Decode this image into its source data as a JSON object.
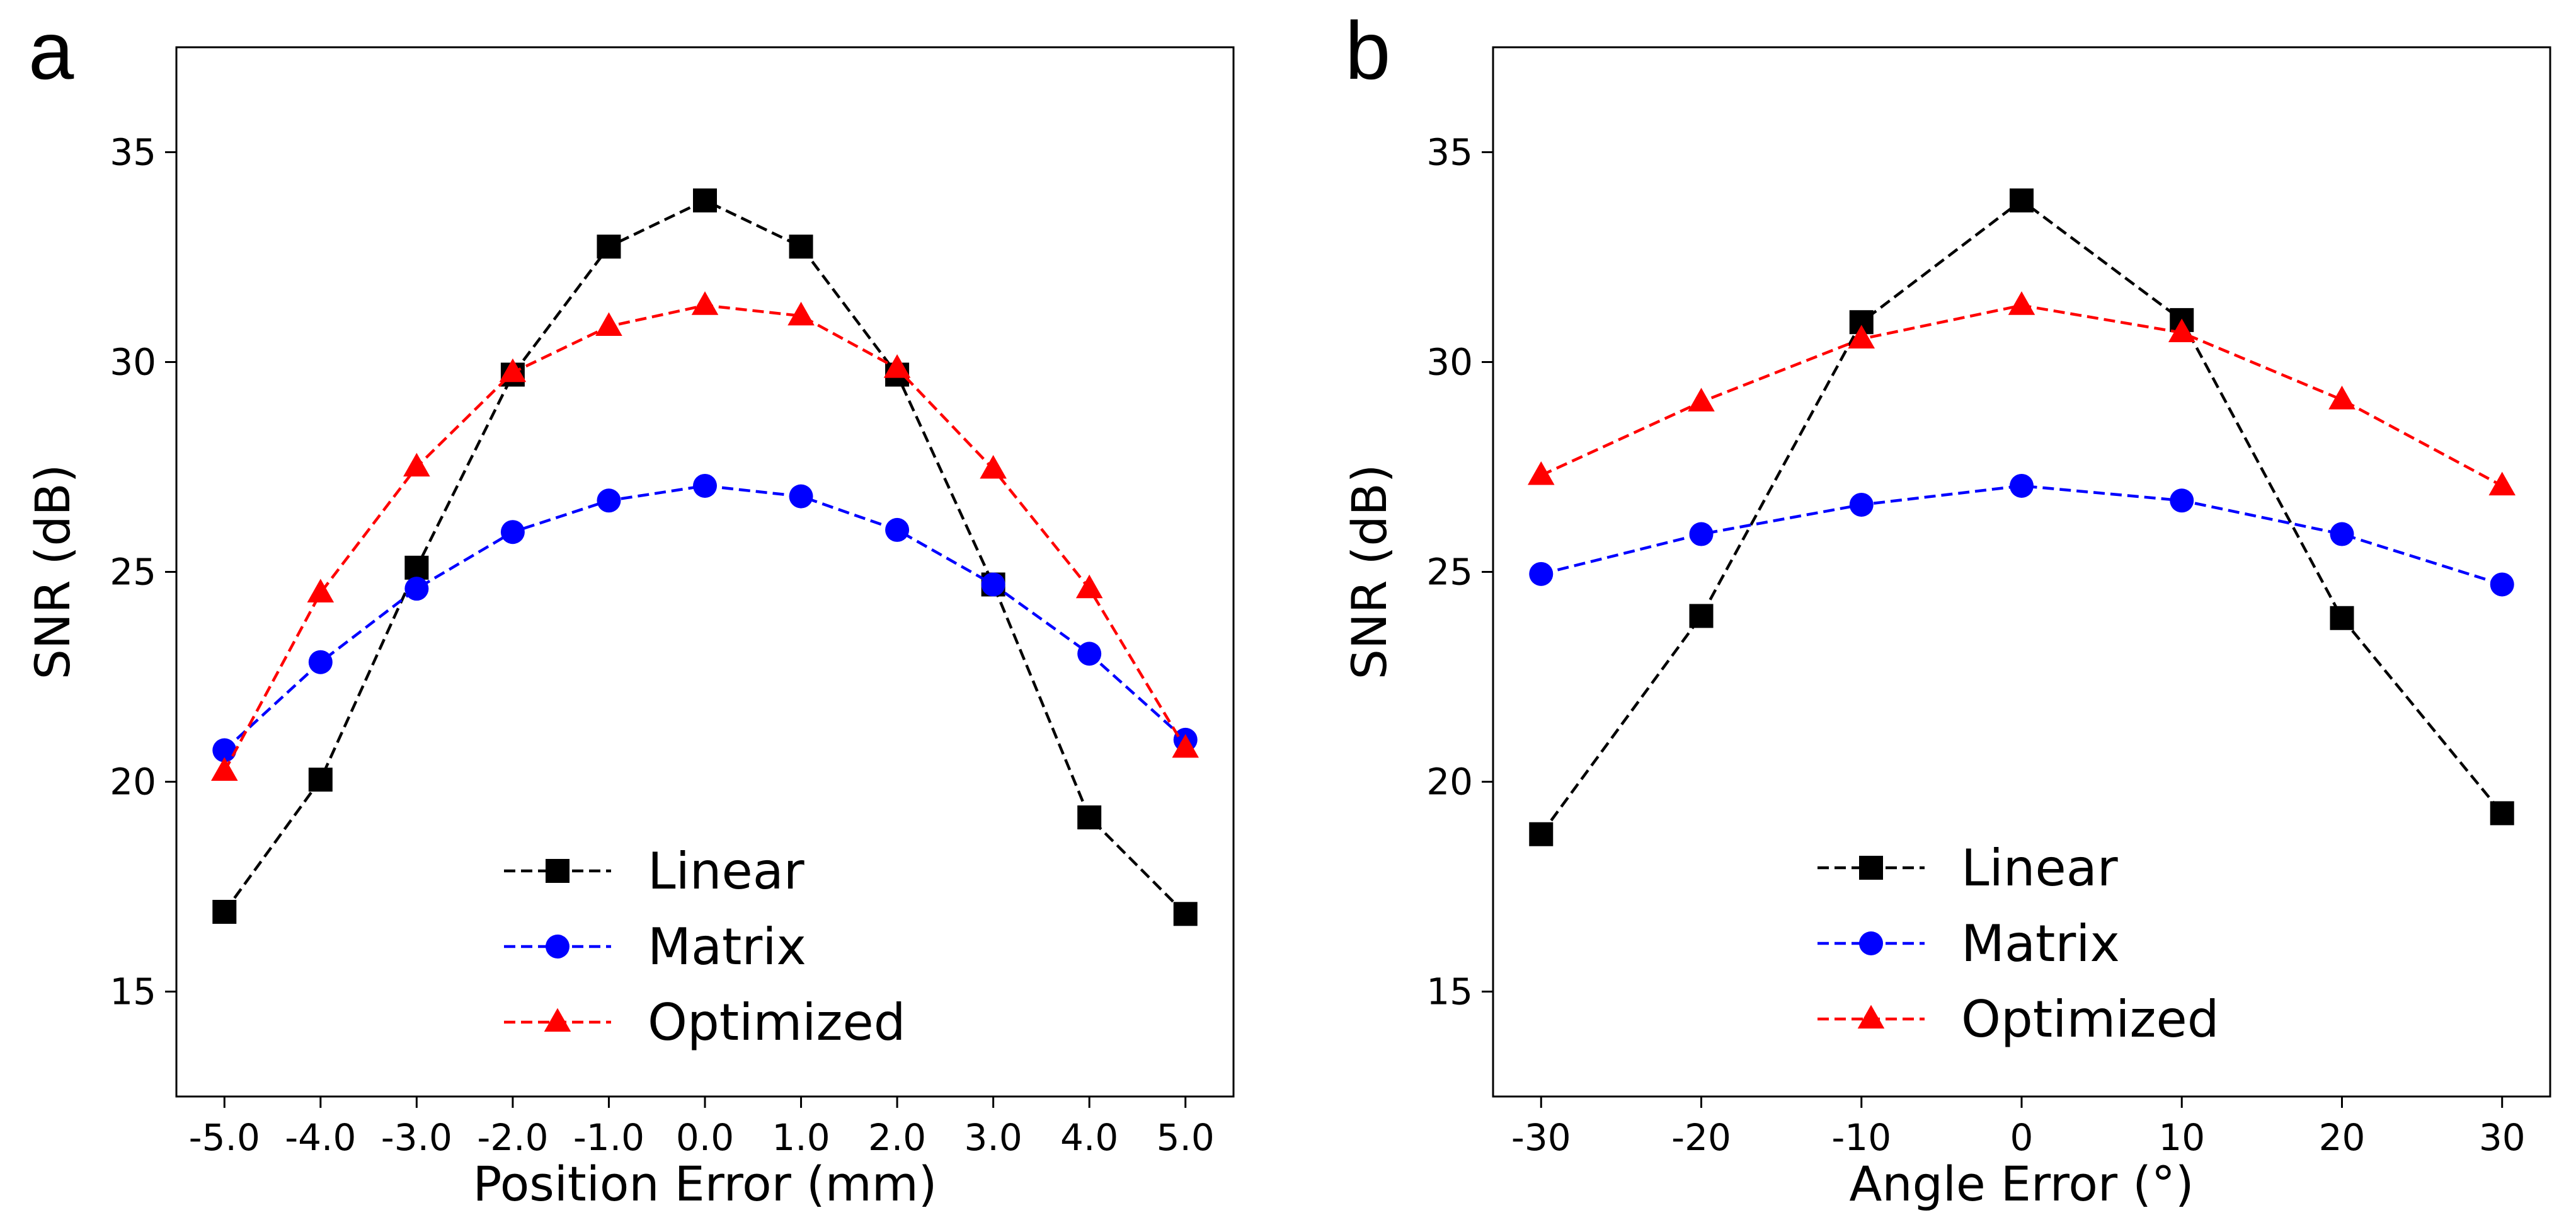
{
  "chart_data": [
    {
      "panel_label": "a",
      "type": "line",
      "xlabel": "Position Error (mm)",
      "ylabel": "SNR (dB)",
      "x": [
        -5,
        -4,
        -3,
        -2,
        -1,
        0,
        1,
        2,
        3,
        4,
        5
      ],
      "x_tick_labels": [
        "-5.0",
        "-4.0",
        "-3.0",
        "-2.0",
        "-1.0",
        "0.0",
        "1.0",
        "2.0",
        "3.0",
        "4.0",
        "5.0"
      ],
      "xlim": [
        -5.5,
        5.5
      ],
      "ylim": [
        12.5,
        37.5
      ],
      "y_ticks": [
        15,
        20,
        25,
        30,
        35
      ],
      "y_tick_labels": [
        "15",
        "20",
        "25",
        "30",
        "35"
      ],
      "legend_position": "lower center",
      "series": [
        {
          "name": "Linear",
          "color": "#000000",
          "marker": "square",
          "values": [
            16.9,
            20.05,
            25.1,
            29.7,
            32.75,
            33.85,
            32.75,
            29.7,
            24.7,
            19.15,
            16.85
          ]
        },
        {
          "name": "Matrix",
          "color": "#0000ff",
          "marker": "circle",
          "values": [
            20.75,
            22.85,
            24.6,
            25.95,
            26.7,
            27.05,
            26.8,
            26.0,
            24.7,
            23.05,
            21.0
          ]
        },
        {
          "name": "Optimized",
          "color": "#ff0000",
          "marker": "triangle",
          "values": [
            20.25,
            24.5,
            27.5,
            29.75,
            30.85,
            31.35,
            31.1,
            29.85,
            27.45,
            24.6,
            20.8
          ]
        }
      ]
    },
    {
      "panel_label": "b",
      "type": "line",
      "xlabel": "Angle Error (°)",
      "ylabel": "SNR (dB)",
      "x": [
        -30,
        -20,
        -10,
        0,
        10,
        20,
        30
      ],
      "x_tick_labels": [
        "-30",
        "-20",
        "-10",
        "0",
        "10",
        "20",
        "30"
      ],
      "xlim": [
        -33,
        33
      ],
      "ylim": [
        12.5,
        37.5
      ],
      "y_ticks": [
        15,
        20,
        25,
        30,
        35
      ],
      "y_tick_labels": [
        "15",
        "20",
        "25",
        "30",
        "35"
      ],
      "legend_position": "lower center",
      "series": [
        {
          "name": "Linear",
          "color": "#000000",
          "marker": "square",
          "values": [
            18.75,
            23.95,
            30.95,
            33.85,
            31.0,
            23.9,
            19.25
          ]
        },
        {
          "name": "Matrix",
          "color": "#0000ff",
          "marker": "circle",
          "values": [
            24.95,
            25.9,
            26.6,
            27.05,
            26.7,
            25.9,
            24.7
          ]
        },
        {
          "name": "Optimized",
          "color": "#ff0000",
          "marker": "triangle",
          "values": [
            27.3,
            29.05,
            30.55,
            31.35,
            30.7,
            29.1,
            27.05
          ]
        }
      ]
    }
  ]
}
